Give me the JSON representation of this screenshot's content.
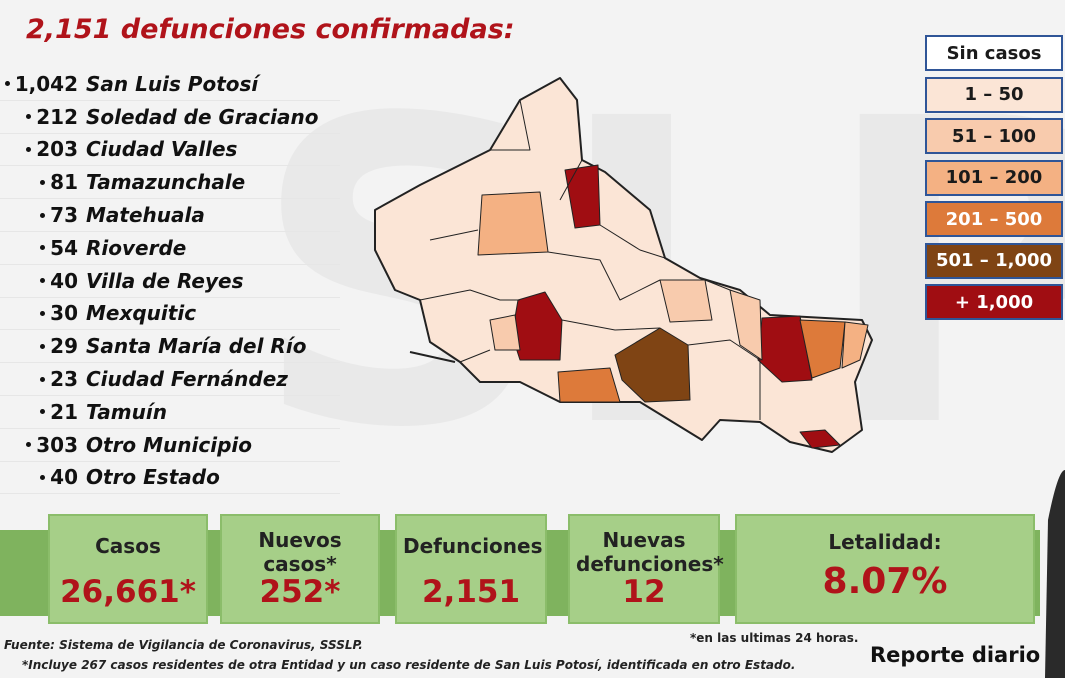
{
  "title": "2,151 defunciones confirmadas:",
  "municipalities": [
    {
      "value": "1,042",
      "name": "San Luis Potosí"
    },
    {
      "value": "212",
      "name": "Soledad de Graciano"
    },
    {
      "value": "203",
      "name": "Ciudad Valles"
    },
    {
      "value": "81",
      "name": "Tamazunchale"
    },
    {
      "value": "73",
      "name": "Matehuala"
    },
    {
      "value": "54",
      "name": "Rioverde"
    },
    {
      "value": "40",
      "name": "Villa de Reyes"
    },
    {
      "value": "30",
      "name": "Mexquitic"
    },
    {
      "value": "29",
      "name": "Santa María del Río"
    },
    {
      "value": "23",
      "name": "Ciudad Fernández"
    },
    {
      "value": "21",
      "name": "Tamuín"
    },
    {
      "value": "303",
      "name": "Otro Municipio"
    },
    {
      "value": "40",
      "name": "Otro Estado"
    }
  ],
  "legend": [
    {
      "label": "Sin casos",
      "color": "#ffffff",
      "text_color": "#1a1a1a"
    },
    {
      "label": "1 – 50",
      "color": "#fbe5d6",
      "text_color": "#1a1a1a"
    },
    {
      "label": "51 – 100",
      "color": "#f8cbad",
      "text_color": "#1a1a1a"
    },
    {
      "label": "101 – 200",
      "color": "#f4b183",
      "text_color": "#1a1a1a"
    },
    {
      "label": "201 – 500",
      "color": "#dd7a3a",
      "text_color": "#ffffff"
    },
    {
      "label": "501 – 1,000",
      "color": "#7f4414",
      "text_color": "#ffffff"
    },
    {
      "label": "+ 1,000",
      "color": "#a00d12",
      "text_color": "#ffffff"
    }
  ],
  "stats": [
    {
      "label": "Casos",
      "value": "26,661*"
    },
    {
      "label": "Nuevos casos*",
      "value": "252*"
    },
    {
      "label": "Defunciones",
      "value": "2,151"
    },
    {
      "label": "Nuevas defunciones*",
      "value": "12"
    },
    {
      "label": "Letalidad:",
      "value": "8.07%"
    }
  ],
  "footnotes": {
    "source": "Fuente: Sistema de Vigilancia de Coronavirus, SSSLP.",
    "note": "*Incluye 267 casos residentes de otra Entidad y un caso residente de San Luis Potosí, identificada en otro Estado.",
    "last24": "*en las ultimas 24 horas."
  },
  "footer_label": "Reporte diario"
}
